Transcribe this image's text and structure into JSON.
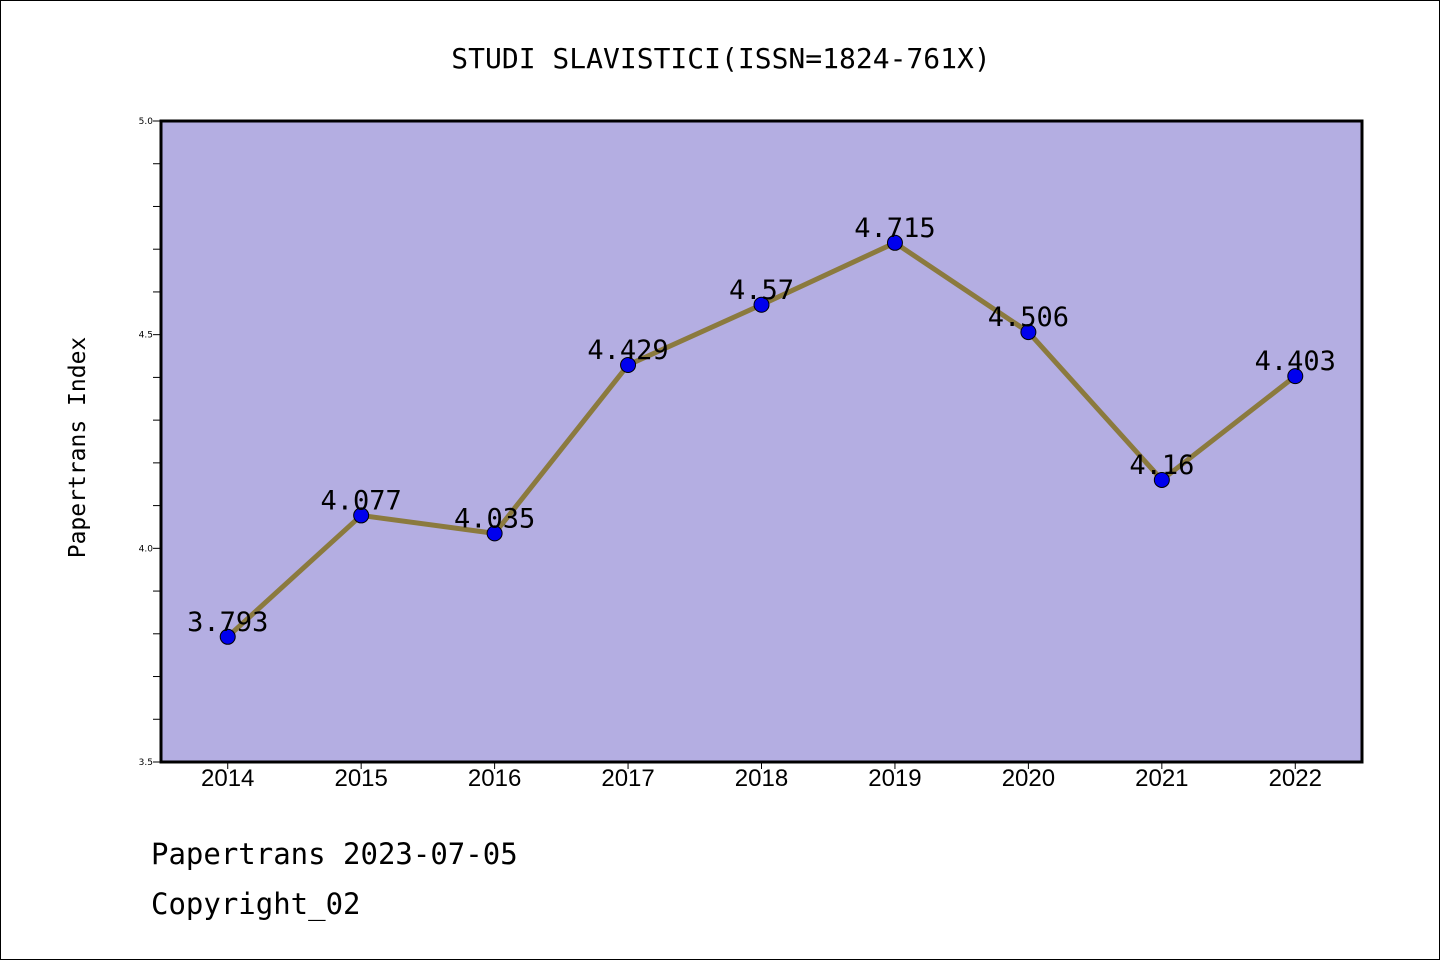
{
  "chart_data": {
    "type": "line",
    "title": "STUDI SLAVISTICI(ISSN=1824-761X)",
    "xlabel": "",
    "ylabel": "Papertrans Index",
    "categories": [
      "2014",
      "2015",
      "2016",
      "2017",
      "2018",
      "2019",
      "2020",
      "2021",
      "2022"
    ],
    "series": [
      {
        "values": [
          3.793,
          4.077,
          4.035,
          4.429,
          4.57,
          4.715,
          4.506,
          4.16,
          4.403
        ],
        "labels": [
          "3.793",
          "4.077",
          "4.035",
          "4.429",
          "4.57",
          "4.715",
          "4.506",
          "4.16",
          "4.403"
        ],
        "line_color": "#8b7a3e",
        "marker_color": "#0000ee"
      }
    ],
    "ylim": [
      3.5,
      5.0
    ],
    "yticks": [
      "3.5",
      "4.0",
      "4.5",
      "5.0"
    ],
    "grid": false,
    "plot_background": "#b4aee2"
  },
  "footer": {
    "line1": "Papertrans 2023-07-05",
    "line2": "Copyright_02"
  }
}
